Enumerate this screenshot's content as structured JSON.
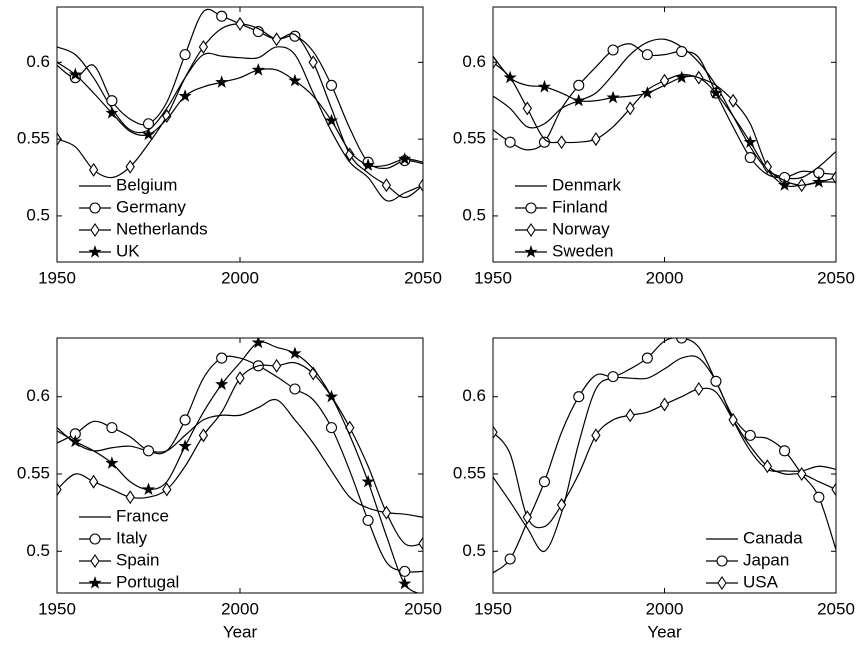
{
  "chart_data": [
    {
      "type": "line",
      "x": [
        1950,
        1955,
        1960,
        1965,
        1970,
        1975,
        1980,
        1985,
        1990,
        1995,
        2000,
        2005,
        2010,
        2015,
        2020,
        2025,
        2030,
        2035,
        2040,
        2045,
        2050
      ],
      "xlim": [
        1950,
        2050
      ],
      "xticks": [
        1950,
        2000,
        2050
      ],
      "ylim": [
        0.47,
        0.636
      ],
      "yticks": [
        0.5,
        0.55,
        0.6
      ],
      "legend": "lower left",
      "series": [
        {
          "name": "Belgium",
          "marker": "none",
          "color": "#000000",
          "values": [
            0.61,
            0.605,
            0.59,
            0.57,
            0.556,
            0.556,
            0.57,
            0.59,
            0.605,
            0.604,
            0.603,
            0.603,
            0.61,
            0.605,
            0.58,
            0.555,
            0.535,
            0.525,
            0.51,
            0.515,
            0.52
          ]
        },
        {
          "name": "Germany",
          "marker": "circle",
          "color": "#000000",
          "values": [
            0.598,
            0.59,
            0.598,
            0.575,
            0.563,
            0.56,
            0.574,
            0.605,
            0.633,
            0.63,
            0.625,
            0.62,
            0.615,
            0.617,
            0.607,
            0.585,
            0.557,
            0.535,
            0.531,
            0.536,
            0.534
          ]
        },
        {
          "name": "Netherlands",
          "marker": "diamond",
          "color": "#000000",
          "values": [
            0.55,
            0.545,
            0.53,
            0.525,
            0.532,
            0.547,
            0.565,
            0.59,
            0.61,
            0.622,
            0.625,
            0.622,
            0.615,
            0.618,
            0.6,
            0.57,
            0.54,
            0.528,
            0.52,
            0.512,
            0.52
          ]
        },
        {
          "name": "UK",
          "marker": "star",
          "color": "#000000",
          "values": [
            0.6,
            0.592,
            0.58,
            0.567,
            0.555,
            0.553,
            0.563,
            0.578,
            0.584,
            0.587,
            0.59,
            0.595,
            0.595,
            0.588,
            0.578,
            0.562,
            0.542,
            0.533,
            0.533,
            0.537,
            0.535
          ]
        }
      ]
    },
    {
      "type": "line",
      "x": [
        1950,
        1955,
        1960,
        1965,
        1970,
        1975,
        1980,
        1985,
        1990,
        1995,
        2000,
        2005,
        2010,
        2015,
        2020,
        2025,
        2030,
        2035,
        2040,
        2045,
        2050
      ],
      "xlim": [
        1950,
        2050
      ],
      "xticks": [
        1950,
        2000,
        2050
      ],
      "ylim": [
        0.47,
        0.636
      ],
      "yticks": [
        0.5,
        0.55,
        0.6
      ],
      "legend": "lower left",
      "series": [
        {
          "name": "Denmark",
          "marker": "none",
          "color": "#000000",
          "values": [
            0.578,
            0.57,
            0.558,
            0.56,
            0.57,
            0.575,
            0.58,
            0.592,
            0.605,
            0.613,
            0.615,
            0.61,
            0.6,
            0.585,
            0.565,
            0.545,
            0.53,
            0.525,
            0.525,
            0.532,
            0.542
          ]
        },
        {
          "name": "Finland",
          "marker": "circle",
          "color": "#000000",
          "values": [
            0.556,
            0.548,
            0.543,
            0.548,
            0.57,
            0.585,
            0.597,
            0.608,
            0.612,
            0.605,
            0.605,
            0.607,
            0.603,
            0.58,
            0.558,
            0.538,
            0.527,
            0.525,
            0.529,
            0.528,
            0.527
          ]
        },
        {
          "name": "Norway",
          "marker": "diamond",
          "color": "#000000",
          "values": [
            0.6,
            0.59,
            0.57,
            0.55,
            0.548,
            0.548,
            0.55,
            0.558,
            0.57,
            0.582,
            0.588,
            0.592,
            0.59,
            0.585,
            0.575,
            0.56,
            0.532,
            0.523,
            0.52,
            0.522,
            0.525
          ]
        },
        {
          "name": "Sweden",
          "marker": "star",
          "color": "#000000",
          "values": [
            0.604,
            0.59,
            0.585,
            0.584,
            0.58,
            0.575,
            0.575,
            0.577,
            0.578,
            0.58,
            0.585,
            0.59,
            0.59,
            0.58,
            0.565,
            0.548,
            0.53,
            0.52,
            0.52,
            0.522,
            0.522
          ]
        }
      ]
    },
    {
      "type": "line",
      "x": [
        1950,
        1955,
        1960,
        1965,
        1970,
        1975,
        1980,
        1985,
        1990,
        1995,
        2000,
        2005,
        2010,
        2015,
        2020,
        2025,
        2030,
        2035,
        2040,
        2045,
        2050
      ],
      "xlim": [
        1950,
        2050
      ],
      "xticks": [
        1950,
        2000,
        2050
      ],
      "ylim": [
        0.473,
        0.638
      ],
      "yticks": [
        0.5,
        0.55,
        0.6
      ],
      "legend": "lower left",
      "xlabel": "Year",
      "series": [
        {
          "name": "France",
          "marker": "none",
          "color": "#000000",
          "values": [
            0.58,
            0.57,
            0.565,
            0.567,
            0.568,
            0.565,
            0.565,
            0.575,
            0.585,
            0.588,
            0.588,
            0.593,
            0.598,
            0.585,
            0.57,
            0.552,
            0.535,
            0.528,
            0.525,
            0.524,
            0.522
          ]
        },
        {
          "name": "Italy",
          "marker": "circle",
          "color": "#000000",
          "values": [
            0.57,
            0.576,
            0.584,
            0.58,
            0.574,
            0.565,
            0.565,
            0.585,
            0.612,
            0.625,
            0.625,
            0.62,
            0.613,
            0.605,
            0.598,
            0.58,
            0.552,
            0.52,
            0.493,
            0.487,
            0.487
          ]
        },
        {
          "name": "Spain",
          "marker": "diamond",
          "color": "#000000",
          "values": [
            0.54,
            0.55,
            0.545,
            0.54,
            0.535,
            0.535,
            0.54,
            0.555,
            0.575,
            0.59,
            0.612,
            0.62,
            0.62,
            0.622,
            0.615,
            0.6,
            0.58,
            0.555,
            0.525,
            0.505,
            0.505
          ]
        },
        {
          "name": "Portugal",
          "marker": "star",
          "color": "#000000",
          "values": [
            0.578,
            0.571,
            0.565,
            0.557,
            0.545,
            0.54,
            0.545,
            0.568,
            0.59,
            0.608,
            0.622,
            0.635,
            0.632,
            0.628,
            0.618,
            0.6,
            0.575,
            0.545,
            0.51,
            0.479,
            0.472
          ]
        }
      ]
    },
    {
      "type": "line",
      "x": [
        1950,
        1955,
        1960,
        1965,
        1970,
        1975,
        1980,
        1985,
        1990,
        1995,
        2000,
        2005,
        2010,
        2015,
        2020,
        2025,
        2030,
        2035,
        2040,
        2045,
        2050
      ],
      "xlim": [
        1950,
        2050
      ],
      "xticks": [
        1950,
        2000,
        2050
      ],
      "ylim": [
        0.473,
        0.638
      ],
      "yticks": [
        0.5,
        0.55,
        0.6
      ],
      "legend": "lower right",
      "xlabel": "Year",
      "series": [
        {
          "name": "Canada",
          "marker": "none",
          "color": "#000000",
          "values": [
            0.548,
            0.532,
            0.515,
            0.5,
            0.525,
            0.57,
            0.605,
            0.612,
            0.612,
            0.612,
            0.618,
            0.625,
            0.625,
            0.61,
            0.585,
            0.565,
            0.553,
            0.552,
            0.552,
            0.555,
            0.553
          ]
        },
        {
          "name": "Japan",
          "marker": "circle",
          "color": "#000000",
          "values": [
            0.486,
            0.495,
            0.519,
            0.545,
            0.577,
            0.6,
            0.614,
            0.613,
            0.618,
            0.625,
            0.636,
            0.638,
            0.632,
            0.61,
            0.587,
            0.575,
            0.573,
            0.565,
            0.55,
            0.535,
            0.501
          ]
        },
        {
          "name": "USA",
          "marker": "diamond",
          "color": "#000000",
          "values": [
            0.577,
            0.563,
            0.522,
            0.516,
            0.53,
            0.55,
            0.575,
            0.585,
            0.588,
            0.59,
            0.595,
            0.6,
            0.605,
            0.603,
            0.585,
            0.568,
            0.555,
            0.55,
            0.55,
            0.545,
            0.54
          ]
        }
      ]
    }
  ]
}
